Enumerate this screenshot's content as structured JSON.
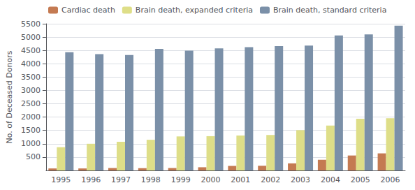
{
  "chart_data": {
    "type": "bar",
    "y_label": "No. of Deceased Donors",
    "categories": [
      "1995",
      "1996",
      "1997",
      "1998",
      "1999",
      "2000",
      "2001",
      "2002",
      "2003",
      "2004",
      "2005",
      "2006"
    ],
    "series": [
      {
        "name": "Cardiac death",
        "color": "#c47a52",
        "values": [
          75,
          75,
          90,
          85,
          90,
          120,
          170,
          175,
          265,
          400,
          560,
          640
        ]
      },
      {
        "name": "Brain death, expanded criteria",
        "color": "#dede88",
        "values": [
          870,
          1000,
          1075,
          1150,
          1275,
          1285,
          1310,
          1330,
          1510,
          1680,
          1940,
          1960
        ]
      },
      {
        "name": "Brain death, standard criteria",
        "color": "#7b90a8",
        "values": [
          4430,
          4360,
          4330,
          4560,
          4490,
          4580,
          4620,
          4660,
          4680,
          5060,
          5100,
          5430
        ]
      }
    ],
    "ylim": [
      0,
      5500
    ],
    "yticks": [
      500,
      1000,
      1500,
      2000,
      2500,
      3000,
      3500,
      4000,
      4500,
      5000,
      5500
    ],
    "grid": true,
    "legend": "upper left"
  }
}
